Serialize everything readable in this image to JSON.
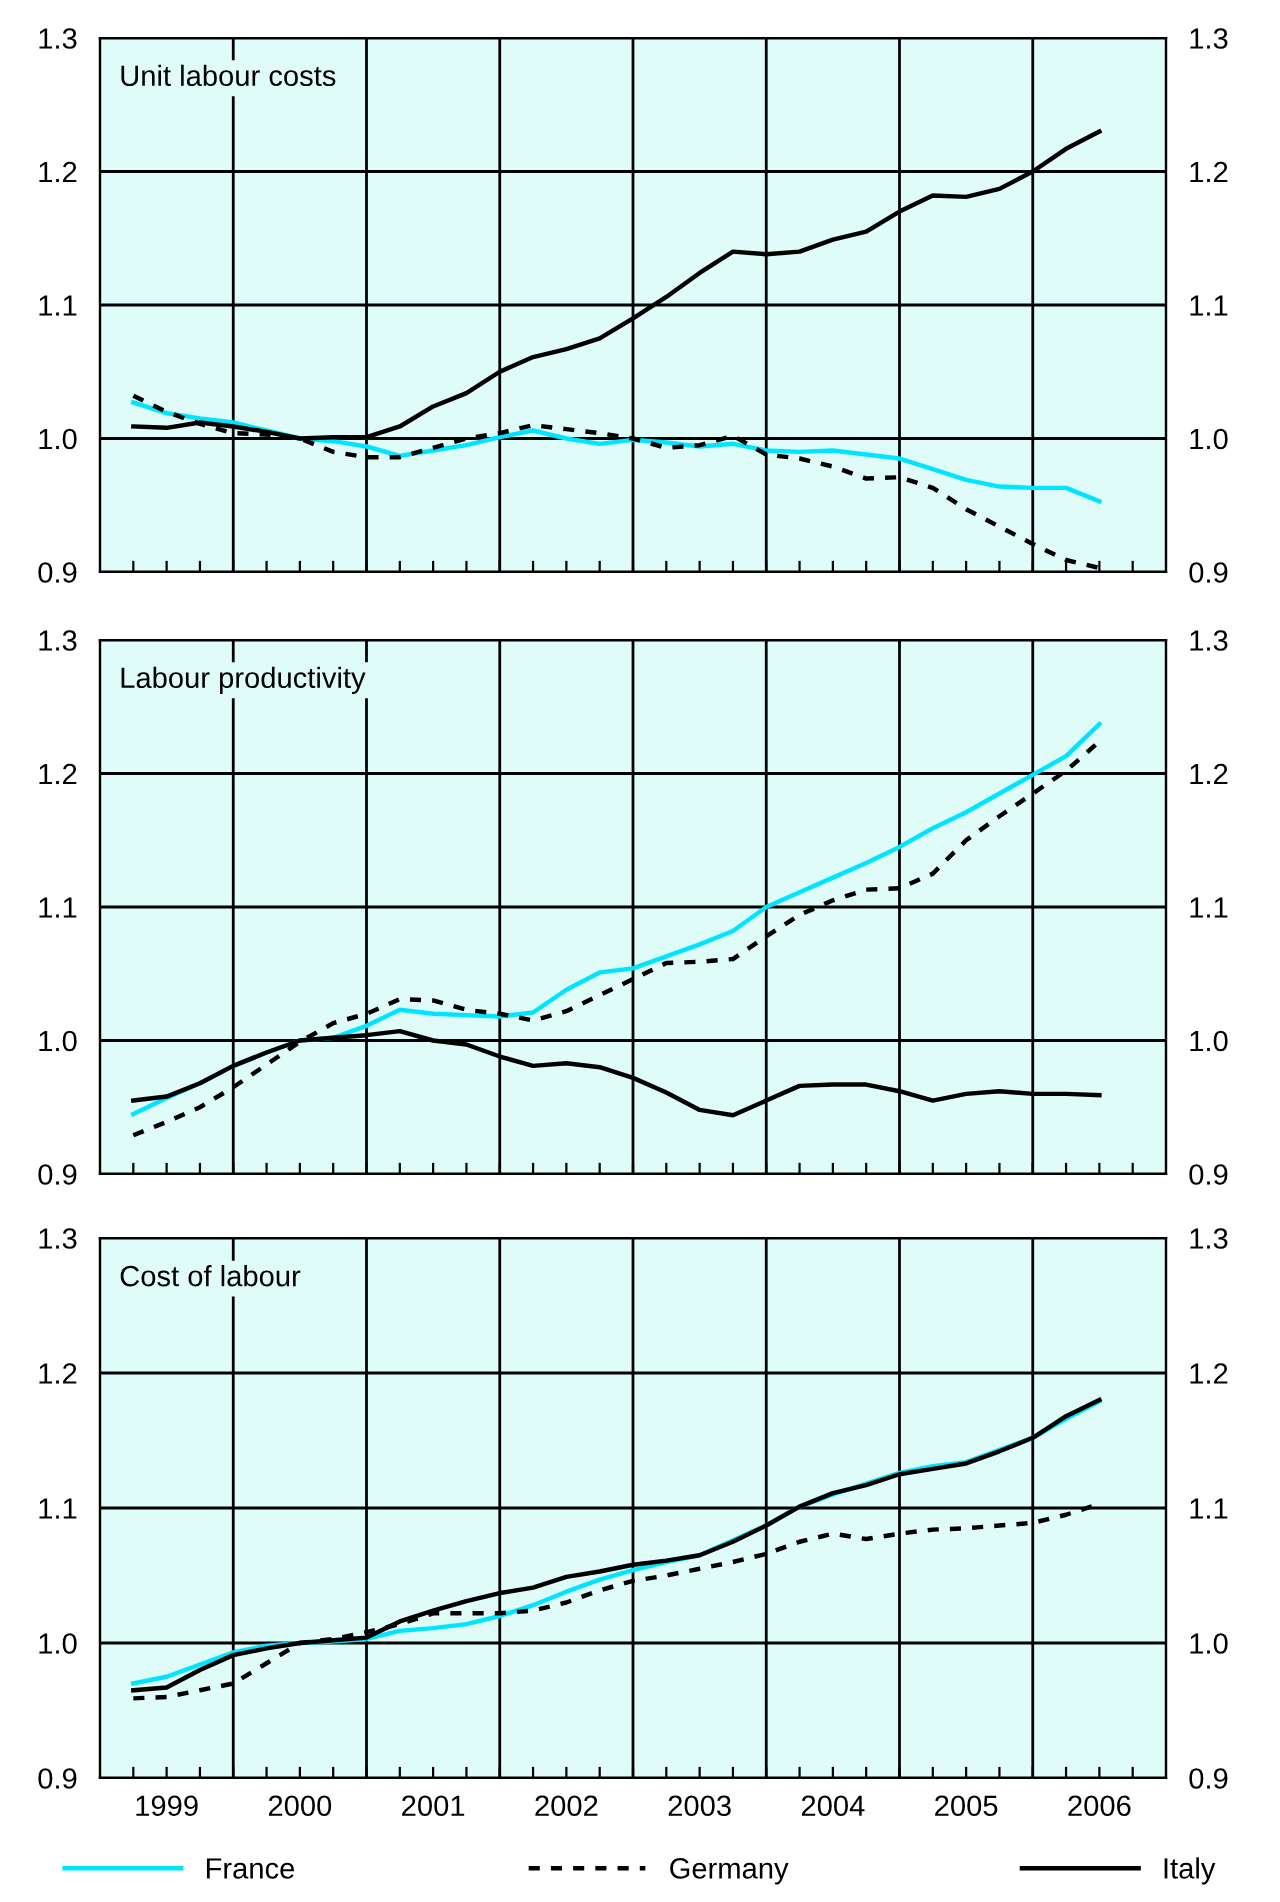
{
  "chart_data": [
    {
      "type": "line",
      "title": "Unit labour costs",
      "x": [
        1998.75,
        1999,
        1999.25,
        1999.5,
        1999.75,
        2000,
        2000.25,
        2000.5,
        2000.75,
        2001,
        2001.25,
        2001.5,
        2001.75,
        2002,
        2002.25,
        2002.5,
        2002.75,
        2003,
        2003.25,
        2003.5,
        2003.75,
        2004,
        2004.25,
        2004.5,
        2004.75,
        2005,
        2005.25,
        2005.5,
        2005.75,
        2006
      ],
      "series": [
        {
          "color": "#00e5ff",
          "line_style": "solid",
          "values": [
            1.027,
            1.019,
            1.015,
            1.012,
            1.006,
            1.0,
            0.998,
            0.994,
            0.987,
            0.991,
            0.995,
            1.001,
            1.006,
            1.0,
            0.996,
            0.999,
            0.997,
            0.994,
            0.996,
            0.991,
            0.99,
            0.991,
            0.988,
            0.985,
            0.977,
            0.969,
            0.964,
            0.963,
            0.963,
            0.953
          ]
        },
        {
          "color": "#000000",
          "line_style": "dashed",
          "values": [
            1.032,
            1.02,
            1.011,
            1.004,
            1.003,
            1.0,
            0.99,
            0.986,
            0.986,
            0.993,
            1.0,
            1.004,
            1.01,
            1.007,
            1.004,
            1.0,
            0.993,
            0.995,
            1.002,
            0.988,
            0.985,
            0.979,
            0.97,
            0.971,
            0.963,
            0.947,
            0.934,
            0.921,
            0.909,
            0.903
          ]
        },
        {
          "color": "#000000",
          "line_style": "solid",
          "values": [
            1.009,
            1.008,
            1.012,
            1.009,
            1.005,
            1.0,
            1.001,
            1.001,
            1.009,
            1.024,
            1.034,
            1.05,
            1.061,
            1.067,
            1.075,
            1.09,
            1.106,
            1.124,
            1.14,
            1.138,
            1.14,
            1.149,
            1.155,
            1.17,
            1.182,
            1.181,
            1.187,
            1.2,
            1.217,
            1.23
          ]
        }
      ],
      "xlim": [
        1998.5,
        2006.5
      ],
      "xticks": [
        {
          "value": 1998.75,
          "label": null
        },
        {
          "value": 1999,
          "label": null
        },
        {
          "value": 1999.25,
          "label": null
        },
        {
          "value": 1999.5,
          "label": null
        },
        {
          "value": 1999.75,
          "label": null
        },
        {
          "value": 2000,
          "label": null
        },
        {
          "value": 2000.25,
          "label": null
        },
        {
          "value": 2000.5,
          "label": null
        },
        {
          "value": 2000.75,
          "label": null
        },
        {
          "value": 2001,
          "label": null
        },
        {
          "value": 2001.25,
          "label": null
        },
        {
          "value": 2001.5,
          "label": null
        },
        {
          "value": 2001.75,
          "label": null
        },
        {
          "value": 2002,
          "label": null
        },
        {
          "value": 2002.25,
          "label": null
        },
        {
          "value": 2002.5,
          "label": null
        },
        {
          "value": 2002.75,
          "label": null
        },
        {
          "value": 2003,
          "label": null
        },
        {
          "value": 2003.25,
          "label": null
        },
        {
          "value": 2003.5,
          "label": null
        },
        {
          "value": 2003.75,
          "label": null
        },
        {
          "value": 2004,
          "label": null
        },
        {
          "value": 2004.25,
          "label": null
        },
        {
          "value": 2004.5,
          "label": null
        },
        {
          "value": 2004.75,
          "label": null
        },
        {
          "value": 2005,
          "label": null
        },
        {
          "value": 2005.25,
          "label": null
        },
        {
          "value": 2005.5,
          "label": null
        },
        {
          "value": 2005.75,
          "label": null
        },
        {
          "value": 2006,
          "label": null
        },
        {
          "value": 2006.25,
          "label": null
        }
      ],
      "ylim": [
        0.9,
        1.3
      ],
      "yticks": [
        {
          "value": 0.9,
          "label": "0.9"
        },
        {
          "value": 1.0,
          "label": "1.0"
        },
        {
          "value": 1.1,
          "label": "1.1"
        },
        {
          "value": 1.2,
          "label": "1.2"
        },
        {
          "value": 1.3,
          "label": "1.3"
        }
      ],
      "y2lim": [
        0.9,
        1.3
      ],
      "y2ticks": [
        {
          "value": 0.9,
          "label": "0.9"
        },
        {
          "value": 1.0,
          "label": "1.0"
        },
        {
          "value": 1.1,
          "label": "1.1"
        },
        {
          "value": 1.2,
          "label": "1.2"
        },
        {
          "value": 1.3,
          "label": "1.3"
        }
      ],
      "ref_lines": [
        {
          "axis": "x",
          "value": 1999.5
        },
        {
          "axis": "x",
          "value": 2000.5
        },
        {
          "axis": "x",
          "value": 2001.5
        },
        {
          "axis": "x",
          "value": 2002.5
        },
        {
          "axis": "x",
          "value": 2003.5
        },
        {
          "axis": "x",
          "value": 2004.5
        },
        {
          "axis": "x",
          "value": 2005.5
        }
      ],
      "grid": "y",
      "tick_labels": "y",
      "legend": false
    },
    {
      "type": "line",
      "title": "Labour productivity",
      "x": [
        1998.75,
        1999,
        1999.25,
        1999.5,
        1999.75,
        2000,
        2000.25,
        2000.5,
        2000.75,
        2001,
        2001.25,
        2001.5,
        2001.75,
        2002,
        2002.25,
        2002.5,
        2002.75,
        2003,
        2003.25,
        2003.5,
        2003.75,
        2004,
        2004.25,
        2004.5,
        2004.75,
        2005,
        2005.25,
        2005.5,
        2005.75,
        2006
      ],
      "series": [
        {
          "color": "#00e5ff",
          "line_style": "solid",
          "values": [
            0.945,
            0.957,
            0.968,
            0.981,
            0.991,
            1.0,
            1.002,
            1.011,
            1.023,
            1.02,
            1.019,
            1.018,
            1.021,
            1.038,
            1.051,
            1.054,
            1.063,
            1.072,
            1.082,
            1.1,
            1.111,
            1.122,
            1.133,
            1.145,
            1.159,
            1.171,
            1.185,
            1.199,
            1.213,
            1.237
          ]
        },
        {
          "color": "#000000",
          "line_style": "dashed",
          "values": [
            0.929,
            0.939,
            0.95,
            0.965,
            0.982,
            0.999,
            1.013,
            1.02,
            1.031,
            1.03,
            1.023,
            1.02,
            1.015,
            1.022,
            1.034,
            1.046,
            1.058,
            1.059,
            1.061,
            1.078,
            1.094,
            1.105,
            1.113,
            1.114,
            1.125,
            1.15,
            1.168,
            1.185,
            1.202,
            1.224
          ]
        },
        {
          "color": "#000000",
          "line_style": "solid",
          "values": [
            0.955,
            0.958,
            0.968,
            0.981,
            0.991,
            1.0,
            1.002,
            1.004,
            1.007,
            1.0,
            0.997,
            0.988,
            0.981,
            0.983,
            0.98,
            0.972,
            0.961,
            0.948,
            0.944,
            0.955,
            0.966,
            0.967,
            0.967,
            0.962,
            0.955,
            0.96,
            0.962,
            0.96,
            0.96,
            0.959
          ]
        }
      ],
      "xlim": [
        1998.5,
        2006.5
      ],
      "xticks": [
        {
          "value": 1998.75,
          "label": null
        },
        {
          "value": 1999,
          "label": null
        },
        {
          "value": 1999.25,
          "label": null
        },
        {
          "value": 1999.5,
          "label": null
        },
        {
          "value": 1999.75,
          "label": null
        },
        {
          "value": 2000,
          "label": null
        },
        {
          "value": 2000.25,
          "label": null
        },
        {
          "value": 2000.5,
          "label": null
        },
        {
          "value": 2000.75,
          "label": null
        },
        {
          "value": 2001,
          "label": null
        },
        {
          "value": 2001.25,
          "label": null
        },
        {
          "value": 2001.5,
          "label": null
        },
        {
          "value": 2001.75,
          "label": null
        },
        {
          "value": 2002,
          "label": null
        },
        {
          "value": 2002.25,
          "label": null
        },
        {
          "value": 2002.5,
          "label": null
        },
        {
          "value": 2002.75,
          "label": null
        },
        {
          "value": 2003,
          "label": null
        },
        {
          "value": 2003.25,
          "label": null
        },
        {
          "value": 2003.5,
          "label": null
        },
        {
          "value": 2003.75,
          "label": null
        },
        {
          "value": 2004,
          "label": null
        },
        {
          "value": 2004.25,
          "label": null
        },
        {
          "value": 2004.5,
          "label": null
        },
        {
          "value": 2004.75,
          "label": null
        },
        {
          "value": 2005,
          "label": null
        },
        {
          "value": 2005.25,
          "label": null
        },
        {
          "value": 2005.5,
          "label": null
        },
        {
          "value": 2005.75,
          "label": null
        },
        {
          "value": 2006,
          "label": null
        },
        {
          "value": 2006.25,
          "label": null
        }
      ],
      "ylim": [
        0.9,
        1.3
      ],
      "yticks": [
        {
          "value": 0.9,
          "label": "0.9"
        },
        {
          "value": 1.0,
          "label": "1.0"
        },
        {
          "value": 1.1,
          "label": "1.1"
        },
        {
          "value": 1.2,
          "label": "1.2"
        },
        {
          "value": 1.3,
          "label": "1.3"
        }
      ],
      "y2lim": [
        0.9,
        1.3
      ],
      "y2ticks": [
        {
          "value": 0.9,
          "label": "0.9"
        },
        {
          "value": 1.0,
          "label": "1.0"
        },
        {
          "value": 1.1,
          "label": "1.1"
        },
        {
          "value": 1.2,
          "label": "1.2"
        },
        {
          "value": 1.3,
          "label": "1.3"
        }
      ],
      "ref_lines": [
        {
          "axis": "x",
          "value": 1999.5
        },
        {
          "axis": "x",
          "value": 2000.5
        },
        {
          "axis": "x",
          "value": 2001.5
        },
        {
          "axis": "x",
          "value": 2002.5
        },
        {
          "axis": "x",
          "value": 2003.5
        },
        {
          "axis": "x",
          "value": 2004.5
        },
        {
          "axis": "x",
          "value": 2005.5
        }
      ],
      "grid": "y",
      "tick_labels": "y",
      "legend": false
    },
    {
      "type": "line",
      "title": "Cost of labour",
      "x": [
        1998.75,
        1999,
        1999.25,
        1999.5,
        1999.75,
        2000,
        2000.25,
        2000.5,
        2000.75,
        2001,
        2001.25,
        2001.5,
        2001.75,
        2002,
        2002.25,
        2002.5,
        2002.75,
        2003,
        2003.25,
        2003.5,
        2003.75,
        2004,
        2004.25,
        2004.5,
        2004.75,
        2005,
        2005.25,
        2005.5,
        2005.75,
        2006
      ],
      "series": [
        {
          "name": "France",
          "color": "#00e5ff",
          "line_style": "solid",
          "values": [
            0.97,
            0.975,
            0.984,
            0.993,
            0.998,
            1.0,
            1.001,
            1.003,
            1.009,
            1.011,
            1.014,
            1.02,
            1.028,
            1.038,
            1.047,
            1.054,
            1.06,
            1.065,
            1.076,
            1.087,
            1.101,
            1.11,
            1.118,
            1.126,
            1.131,
            1.134,
            1.143,
            1.152,
            1.166,
            1.179
          ]
        },
        {
          "name": "Germany",
          "color": "#000000",
          "line_style": "dashed",
          "values": [
            0.959,
            0.96,
            0.965,
            0.97,
            0.985,
            1.0,
            1.003,
            1.008,
            1.014,
            1.022,
            1.022,
            1.022,
            1.024,
            1.03,
            1.039,
            1.046,
            1.05,
            1.055,
            1.06,
            1.066,
            1.075,
            1.081,
            1.077,
            1.081,
            1.084,
            1.085,
            1.087,
            1.089,
            1.095,
            1.103
          ]
        },
        {
          "name": "Italy",
          "color": "#000000",
          "line_style": "solid",
          "values": [
            0.965,
            0.967,
            0.98,
            0.991,
            0.996,
            1.0,
            1.002,
            1.004,
            1.016,
            1.024,
            1.031,
            1.037,
            1.041,
            1.049,
            1.053,
            1.058,
            1.061,
            1.065,
            1.075,
            1.087,
            1.101,
            1.111,
            1.117,
            1.125,
            1.129,
            1.133,
            1.142,
            1.152,
            1.168,
            1.18
          ]
        }
      ],
      "xlim": [
        1998.5,
        2006.5
      ],
      "xticks": [
        {
          "value": 1998.75,
          "label": null
        },
        1999,
        {
          "value": 1999.25,
          "label": null
        },
        {
          "value": 1999.5,
          "label": null
        },
        {
          "value": 1999.75,
          "label": null
        },
        2000,
        {
          "value": 2000.25,
          "label": null
        },
        {
          "value": 2000.5,
          "label": null
        },
        {
          "value": 2000.75,
          "label": null
        },
        2001,
        {
          "value": 2001.25,
          "label": null
        },
        {
          "value": 2001.5,
          "label": null
        },
        {
          "value": 2001.75,
          "label": null
        },
        2002,
        {
          "value": 2002.25,
          "label": null
        },
        {
          "value": 2002.5,
          "label": null
        },
        {
          "value": 2002.75,
          "label": null
        },
        2003,
        {
          "value": 2003.25,
          "label": null
        },
        {
          "value": 2003.5,
          "label": null
        },
        {
          "value": 2003.75,
          "label": null
        },
        2004,
        {
          "value": 2004.25,
          "label": null
        },
        {
          "value": 2004.5,
          "label": null
        },
        {
          "value": 2004.75,
          "label": null
        },
        2005,
        {
          "value": 2005.25,
          "label": null
        },
        {
          "value": 2005.5,
          "label": null
        },
        {
          "value": 2005.75,
          "label": null
        },
        2006,
        {
          "value": 2006.25,
          "label": null
        }
      ],
      "ylim": [
        0.9,
        1.3
      ],
      "yticks": [
        {
          "value": 0.9,
          "label": "0.9"
        },
        {
          "value": 1.0,
          "label": "1.0"
        },
        {
          "value": 1.1,
          "label": "1.1"
        },
        {
          "value": 1.2,
          "label": "1.2"
        },
        {
          "value": 1.3,
          "label": "1.3"
        }
      ],
      "y2lim": [
        0.9,
        1.3
      ],
      "y2ticks": [
        {
          "value": 0.9,
          "label": "0.9"
        },
        {
          "value": 1.0,
          "label": "1.0"
        },
        {
          "value": 1.1,
          "label": "1.1"
        },
        {
          "value": 1.2,
          "label": "1.2"
        },
        {
          "value": 1.3,
          "label": "1.3"
        }
      ],
      "ref_lines": [
        {
          "axis": "x",
          "value": 1999.5
        },
        {
          "axis": "x",
          "value": 2000.5
        },
        {
          "axis": "x",
          "value": 2001.5
        },
        {
          "axis": "x",
          "value": 2002.5
        },
        {
          "axis": "x",
          "value": 2003.5
        },
        {
          "axis": "x",
          "value": 2004.5
        },
        {
          "axis": "x",
          "value": 2005.5
        }
      ],
      "grid": "y",
      "legend": "bottom"
    }
  ]
}
